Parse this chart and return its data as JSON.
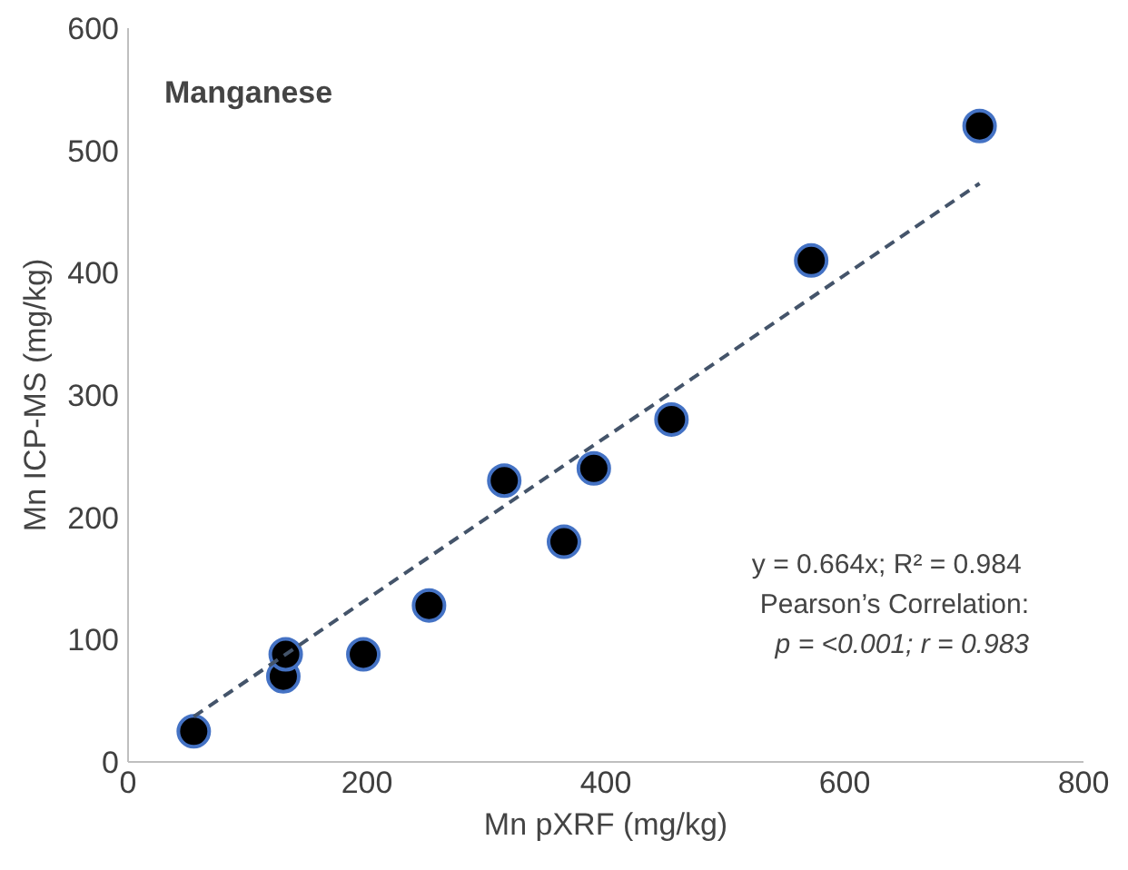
{
  "chart_data": {
    "type": "scatter",
    "xlabel": "Mn pXRF (mg/kg)",
    "ylabel": "Mn ICP-MS (mg/kg)",
    "xlim": [
      0,
      800
    ],
    "ylim": [
      0,
      600
    ],
    "xticks": [
      0,
      200,
      400,
      600,
      800
    ],
    "yticks": [
      0,
      100,
      200,
      300,
      400,
      500,
      600
    ],
    "grid": false,
    "series": [
      {
        "marker": "circle",
        "color": "#000000",
        "x": [
          55,
          130,
          132,
          197,
          252,
          315,
          365,
          390,
          455,
          572,
          713
        ],
        "values": [
          25,
          70,
          88,
          88,
          128,
          230,
          180,
          240,
          280,
          410,
          520
        ]
      },
      {
        "type": "line",
        "marker": "none",
        "line_style": "dashed",
        "color": "#44546a",
        "x": [
          55,
          713
        ],
        "values": [
          37,
          473
        ]
      }
    ],
    "annotations": [
      "Manganese",
      "y = 0.664x;  R² = 0.984",
      "Pearson’s Correlation:",
      "p = <0.001; r = 0.983"
    ]
  }
}
